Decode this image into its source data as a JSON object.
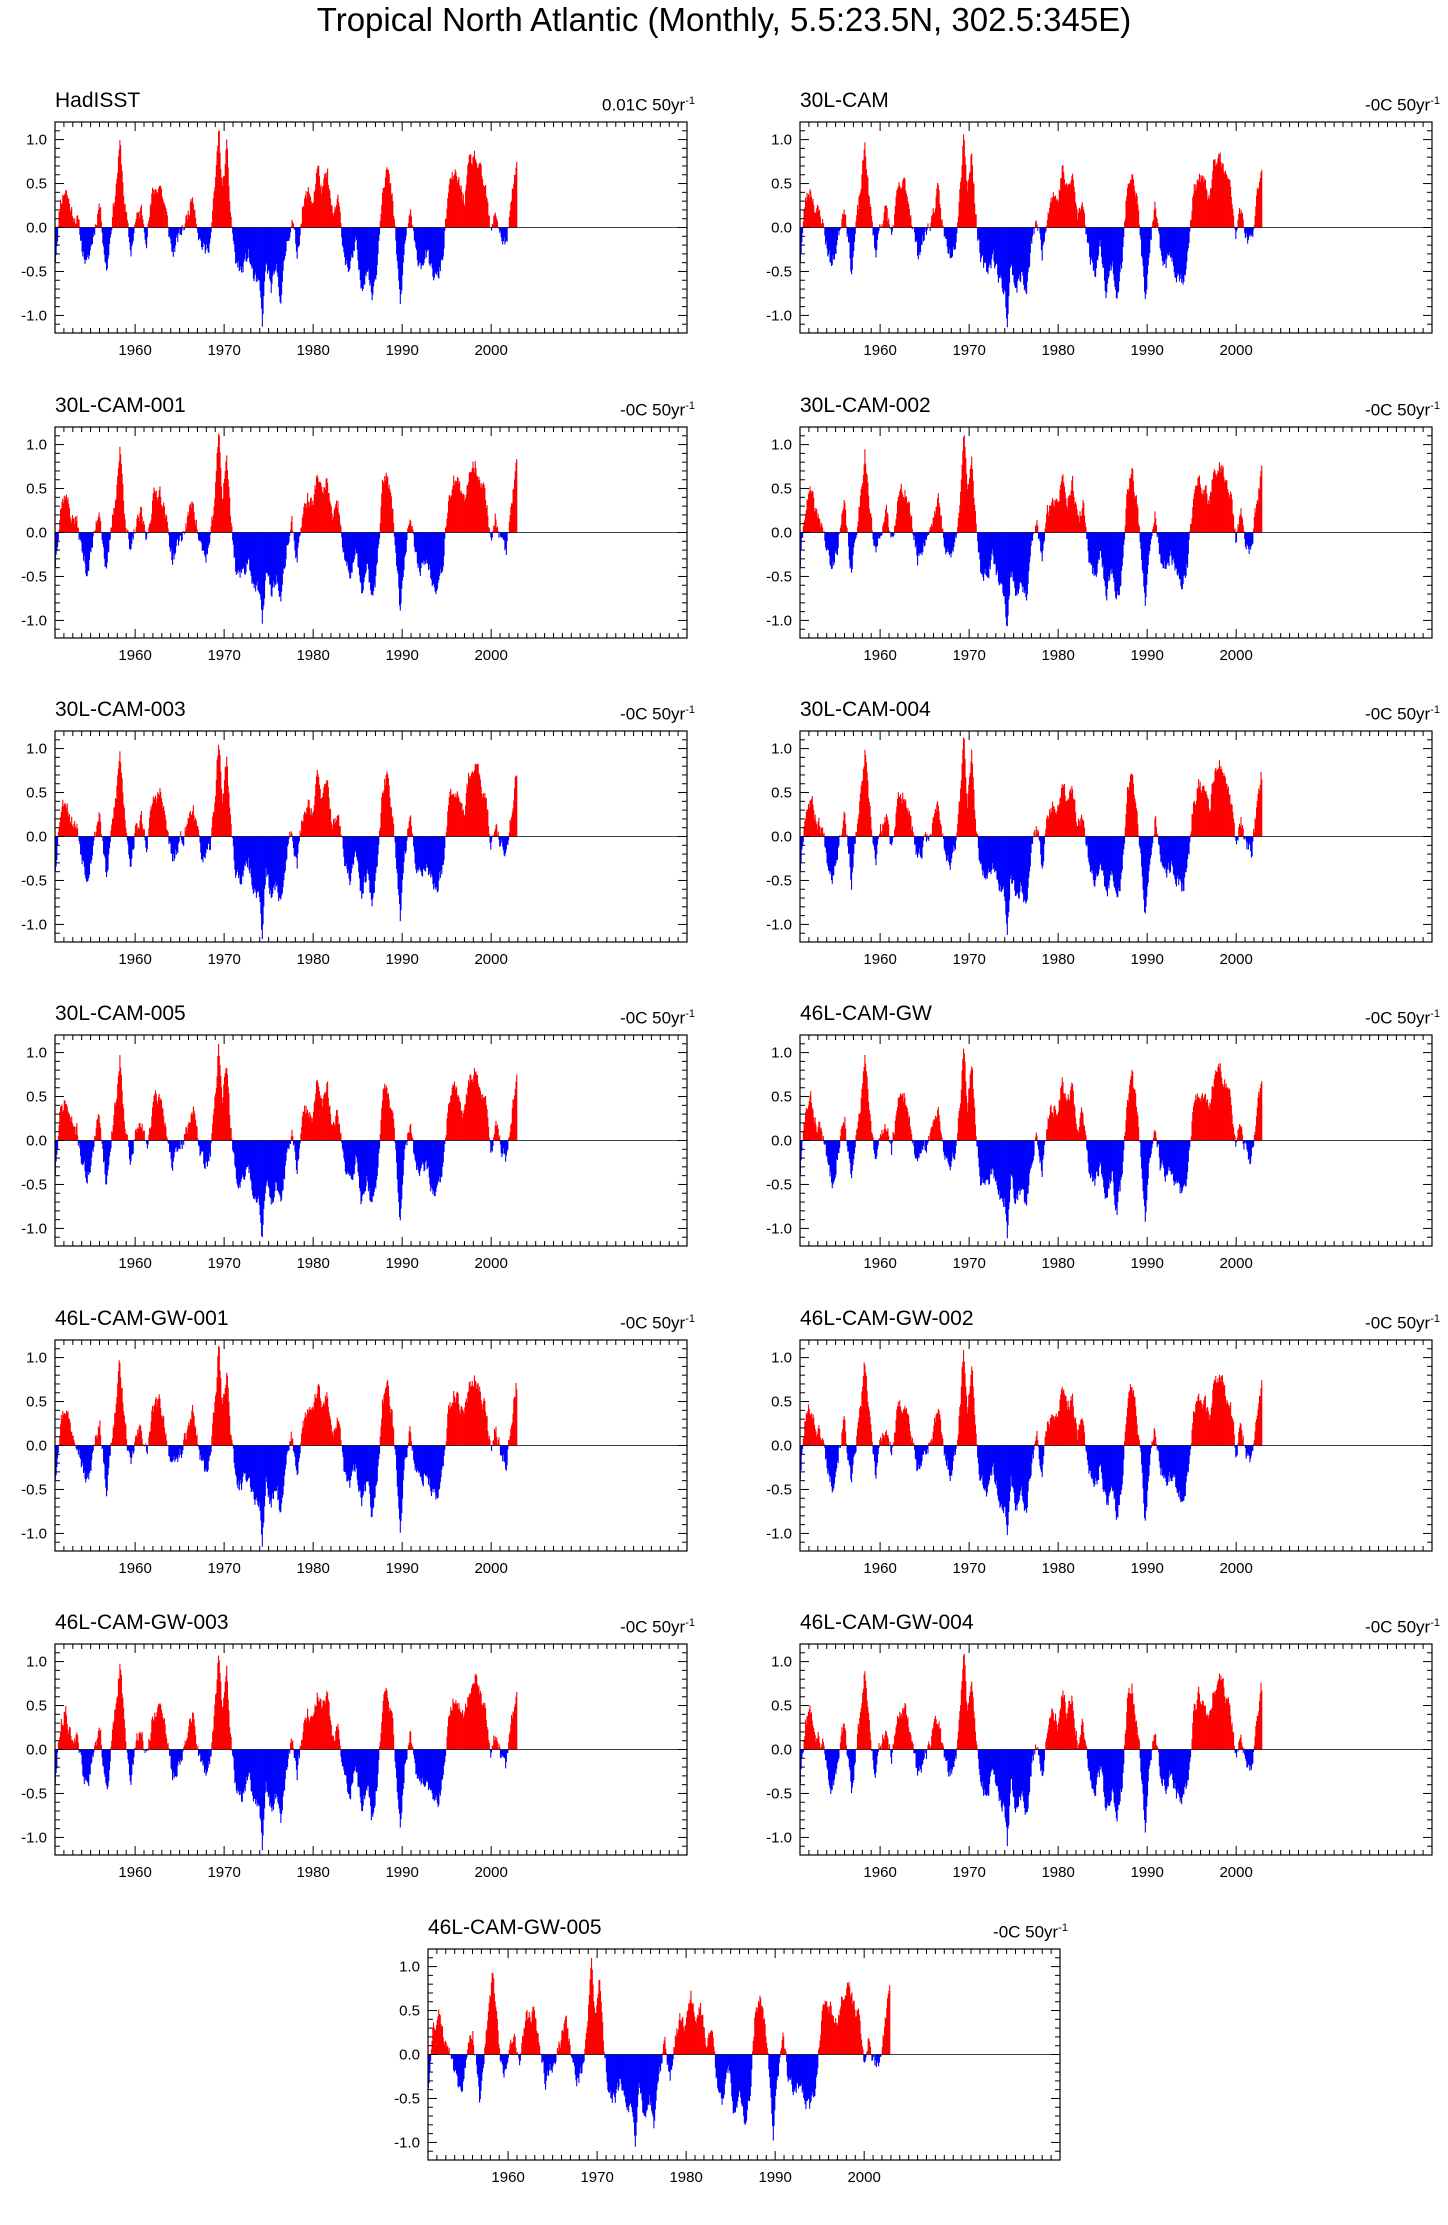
{
  "title": "Tropical North Atlantic (Monthly, 5.5:23.5N, 302.5:345E)",
  "colors": {
    "positive": "#ff0000",
    "negative": "#0000ff",
    "axis": "#000000"
  },
  "chart_data": {
    "type": "bar",
    "xlim": [
      1951,
      2022
    ],
    "ylim": [
      -1.2,
      1.2
    ],
    "xticks": [
      1960,
      1970,
      1980,
      1990,
      2000
    ],
    "xtick_labels": [
      "1960",
      "1970",
      "1980",
      "1990",
      "2000"
    ],
    "yticks": [
      -1.0,
      -0.5,
      0.0,
      0.5,
      1.0
    ],
    "ytick_labels": [
      "-1.0",
      "-0.5",
      "0.0",
      "0.5",
      "1.0"
    ],
    "series_template": {
      "description": "monthly SST anomaly (C), shaded red above zero and blue below; approximate anomaly knots read from the plots, interpolated monthly",
      "knots": [
        [
          1951.0,
          -0.4
        ],
        [
          1951.6,
          0.3
        ],
        [
          1952.2,
          0.45
        ],
        [
          1952.8,
          0.2
        ],
        [
          1953.5,
          0.1
        ],
        [
          1954.0,
          -0.2
        ],
        [
          1954.6,
          -0.45
        ],
        [
          1955.3,
          -0.1
        ],
        [
          1956.0,
          0.3
        ],
        [
          1956.8,
          -0.5
        ],
        [
          1957.4,
          0.1
        ],
        [
          1957.9,
          0.5
        ],
        [
          1958.3,
          0.95
        ],
        [
          1958.8,
          0.3
        ],
        [
          1959.5,
          -0.3
        ],
        [
          1960.0,
          0.05
        ],
        [
          1960.7,
          0.2
        ],
        [
          1961.3,
          -0.1
        ],
        [
          1962.0,
          0.4
        ],
        [
          1962.8,
          0.5
        ],
        [
          1963.4,
          0.2
        ],
        [
          1964.2,
          -0.3
        ],
        [
          1965.0,
          -0.1
        ],
        [
          1965.8,
          0.1
        ],
        [
          1966.5,
          0.4
        ],
        [
          1967.2,
          -0.1
        ],
        [
          1967.9,
          -0.3
        ],
        [
          1968.5,
          -0.1
        ],
        [
          1969.1,
          0.6
        ],
        [
          1969.4,
          1.15
        ],
        [
          1969.8,
          0.4
        ],
        [
          1970.3,
          0.9
        ],
        [
          1970.7,
          0.2
        ],
        [
          1971.3,
          -0.4
        ],
        [
          1972.0,
          -0.5
        ],
        [
          1972.7,
          -0.3
        ],
        [
          1973.4,
          -0.6
        ],
        [
          1974.0,
          -0.7
        ],
        [
          1974.3,
          -1.1
        ],
        [
          1974.7,
          -0.4
        ],
        [
          1975.3,
          -0.7
        ],
        [
          1975.9,
          -0.5
        ],
        [
          1976.4,
          -0.8
        ],
        [
          1977.0,
          -0.2
        ],
        [
          1977.6,
          0.1
        ],
        [
          1978.2,
          -0.3
        ],
        [
          1978.8,
          0.2
        ],
        [
          1979.4,
          0.4
        ],
        [
          1980.0,
          0.3
        ],
        [
          1980.5,
          0.7
        ],
        [
          1981.0,
          0.4
        ],
        [
          1981.6,
          0.6
        ],
        [
          1982.2,
          0.1
        ],
        [
          1982.8,
          0.3
        ],
        [
          1983.5,
          -0.3
        ],
        [
          1984.1,
          -0.5
        ],
        [
          1984.8,
          -0.2
        ],
        [
          1985.4,
          -0.7
        ],
        [
          1986.1,
          -0.4
        ],
        [
          1986.6,
          -0.8
        ],
        [
          1987.2,
          -0.4
        ],
        [
          1987.8,
          0.5
        ],
        [
          1988.3,
          0.7
        ],
        [
          1988.9,
          0.3
        ],
        [
          1989.4,
          -0.3
        ],
        [
          1989.8,
          -0.9
        ],
        [
          1990.3,
          -0.2
        ],
        [
          1990.9,
          0.2
        ],
        [
          1991.5,
          -0.3
        ],
        [
          1992.1,
          -0.4
        ],
        [
          1992.7,
          -0.3
        ],
        [
          1993.3,
          -0.5
        ],
        [
          1994.0,
          -0.6
        ],
        [
          1994.6,
          -0.3
        ],
        [
          1995.2,
          0.4
        ],
        [
          1995.8,
          0.6
        ],
        [
          1996.4,
          0.5
        ],
        [
          1997.0,
          0.3
        ],
        [
          1997.5,
          0.7
        ],
        [
          1998.2,
          0.8
        ],
        [
          1998.8,
          0.6
        ],
        [
          1999.4,
          0.4
        ],
        [
          2000.0,
          -0.1
        ],
        [
          2000.5,
          0.2
        ],
        [
          2001.1,
          -0.1
        ],
        [
          2001.7,
          -0.2
        ],
        [
          2002.3,
          0.3
        ],
        [
          2002.8,
          0.7
        ]
      ]
    },
    "panels": [
      {
        "name": "HadISST",
        "trend_value": "0.01C 50yr",
        "trend_exp": "-1",
        "seed": 11
      },
      {
        "name": "30L-CAM",
        "trend_value": "-0C 50yr",
        "trend_exp": "-1",
        "seed": 23
      },
      {
        "name": "30L-CAM-001",
        "trend_value": "-0C 50yr",
        "trend_exp": "-1",
        "seed": 37
      },
      {
        "name": "30L-CAM-002",
        "trend_value": "-0C 50yr",
        "trend_exp": "-1",
        "seed": 41
      },
      {
        "name": "30L-CAM-003",
        "trend_value": "-0C 50yr",
        "trend_exp": "-1",
        "seed": 53
      },
      {
        "name": "30L-CAM-004",
        "trend_value": "-0C 50yr",
        "trend_exp": "-1",
        "seed": 67
      },
      {
        "name": "30L-CAM-005",
        "trend_value": "-0C 50yr",
        "trend_exp": "-1",
        "seed": 71
      },
      {
        "name": "46L-CAM-GW",
        "trend_value": "-0C 50yr",
        "trend_exp": "-1",
        "seed": 83
      },
      {
        "name": "46L-CAM-GW-001",
        "trend_value": "-0C 50yr",
        "trend_exp": "-1",
        "seed": 97
      },
      {
        "name": "46L-CAM-GW-002",
        "trend_value": "-0C 50yr",
        "trend_exp": "-1",
        "seed": 101
      },
      {
        "name": "46L-CAM-GW-003",
        "trend_value": "-0C 50yr",
        "trend_exp": "-1",
        "seed": 113
      },
      {
        "name": "46L-CAM-GW-004",
        "trend_value": "-0C 50yr",
        "trend_exp": "-1",
        "seed": 127
      },
      {
        "name": "46L-CAM-GW-005",
        "trend_value": "-0C 50yr",
        "trend_exp": "-1",
        "seed": 131
      }
    ]
  }
}
